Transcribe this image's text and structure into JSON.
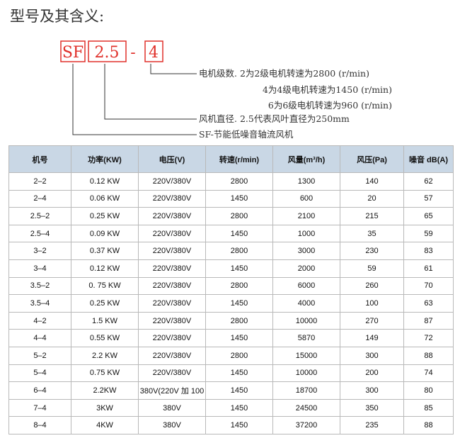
{
  "header": {
    "title": "型号及其含义:"
  },
  "model": {
    "parts": [
      "SF",
      "2.5",
      "-",
      "4"
    ],
    "notes": [
      "电机级数. 2为2级电机转速为2800 (r/min)",
      "4为4级电机转速为1450 (r/min)",
      "6为6级电机转速为960 (r/min)",
      "风机直径. 2.5代表风叶直径为250mm",
      "SF-节能低噪音轴流风机"
    ]
  },
  "table": {
    "columns": [
      "机号",
      "功率(KW)",
      "电压(V)",
      "转速(r/min)",
      "风量(m³/h)",
      "风压(Pa)",
      "噪音 dB(A)"
    ],
    "rows": [
      [
        "2–2",
        "0.12 KW",
        "220V/380V",
        "2800",
        "1300",
        "140",
        "62"
      ],
      [
        "2–4",
        "0.06 KW",
        "220V/380V",
        "1450",
        "600",
        "20",
        "57"
      ],
      [
        "2.5–2",
        "0.25 KW",
        "220V/380V",
        "2800",
        "2100",
        "215",
        "65"
      ],
      [
        "2.5–4",
        "0.09 KW",
        "220V/380V",
        "1450",
        "1000",
        "35",
        "59"
      ],
      [
        "3–2",
        "0.37 KW",
        "220V/380V",
        "2800",
        "3000",
        "230",
        "83"
      ],
      [
        "3–4",
        "0.12 KW",
        "220V/380V",
        "1450",
        "2000",
        "59",
        "61"
      ],
      [
        "3.5–2",
        "0. 75 KW",
        "220V/380V",
        "2800",
        "6000",
        "260",
        "70"
      ],
      [
        "3.5–4",
        "0.25 KW",
        "220V/380V",
        "1450",
        "4000",
        "100",
        "63"
      ],
      [
        "4–2",
        "1.5 KW",
        "220V/380V",
        "2800",
        "10000",
        "270",
        "87"
      ],
      [
        "4–4",
        "0.55 KW",
        "220V/380V",
        "1450",
        "5870",
        "149",
        "72"
      ],
      [
        "5–2",
        "2.2 KW",
        "220V/380V",
        "2800",
        "15000",
        "300",
        "88"
      ],
      [
        "5–4",
        "0.75 KW",
        "220V/380V",
        "1450",
        "10000",
        "200",
        "74"
      ],
      [
        "6–4",
        "2.2KW",
        "380V(220V 加 100",
        "1450",
        "18700",
        "300",
        "80"
      ],
      [
        "7–4",
        "3KW",
        "380V",
        "1450",
        "24500",
        "350",
        "85"
      ],
      [
        "8–4",
        "4KW",
        "380V",
        "1450",
        "37200",
        "235",
        "88"
      ]
    ]
  }
}
